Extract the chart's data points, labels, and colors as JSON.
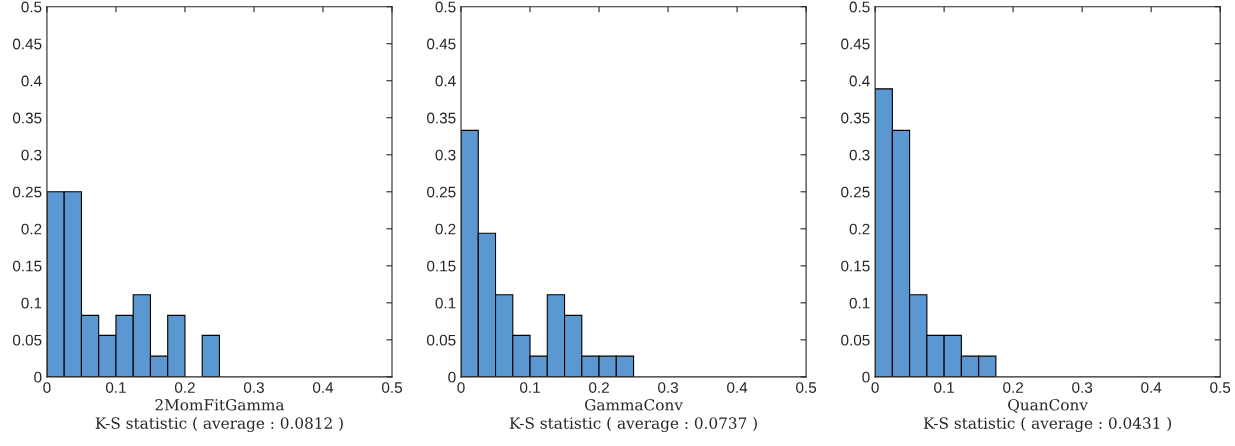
{
  "chart_data": [
    {
      "type": "histogram",
      "xlabel": "2MomFitGamma\nK-S statistic ( average : 0.0812 )",
      "bins": [
        0,
        0.025,
        0.05,
        0.075,
        0.1,
        0.125,
        0.15,
        0.175,
        0.2,
        0.225,
        0.25
      ],
      "values": [
        0.25,
        0.25,
        0.083,
        0.056,
        0.083,
        0.111,
        0.028,
        0.083,
        0,
        0.056
      ],
      "color": "#5b97d1",
      "xlim": [
        0,
        0.5
      ],
      "ylim": [
        0,
        0.5
      ],
      "xticks": [
        0,
        0.1,
        0.2,
        0.3,
        0.4,
        0.5
      ],
      "yticks": [
        0,
        0.05,
        0.1,
        0.15,
        0.2,
        0.25,
        0.3,
        0.35,
        0.4,
        0.45,
        0.5
      ]
    },
    {
      "type": "histogram",
      "xlabel": "GammaConv\nK-S statistic ( average : 0.0737 )",
      "bins": [
        0,
        0.025,
        0.05,
        0.075,
        0.1,
        0.125,
        0.15,
        0.175,
        0.2,
        0.225,
        0.25
      ],
      "values": [
        0.333,
        0.194,
        0.111,
        0.056,
        0.028,
        0.111,
        0.083,
        0.028,
        0.028,
        0.028
      ],
      "color": "#5b97d1",
      "xlim": [
        0,
        0.5
      ],
      "ylim": [
        0,
        0.5
      ],
      "xticks": [
        0,
        0.1,
        0.2,
        0.3,
        0.4,
        0.5
      ],
      "yticks": [
        0,
        0.05,
        0.1,
        0.15,
        0.2,
        0.25,
        0.3,
        0.35,
        0.4,
        0.45,
        0.5
      ]
    },
    {
      "type": "histogram",
      "xlabel": "QuanConv\nK-S statistic ( average : 0.0431 )",
      "bins": [
        0,
        0.025,
        0.05,
        0.075,
        0.1,
        0.125,
        0.15,
        0.175
      ],
      "values": [
        0.389,
        0.333,
        0.111,
        0.056,
        0.056,
        0.028,
        0.028
      ],
      "color": "#5b97d1",
      "xlim": [
        0,
        0.5
      ],
      "ylim": [
        0,
        0.5
      ],
      "xticks": [
        0,
        0.1,
        0.2,
        0.3,
        0.4,
        0.5
      ],
      "yticks": [
        0,
        0.05,
        0.1,
        0.15,
        0.2,
        0.25,
        0.3,
        0.35,
        0.4,
        0.45,
        0.5
      ]
    }
  ]
}
